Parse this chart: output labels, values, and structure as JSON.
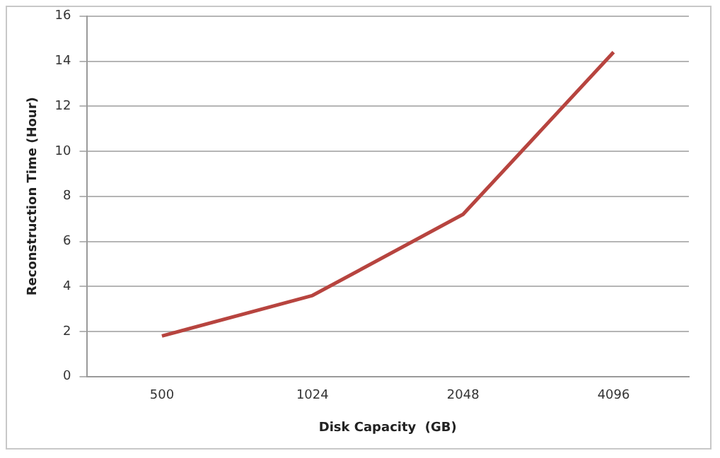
{
  "chart_data": {
    "type": "line",
    "xlabel": "Disk Capacity  (GB)",
    "ylabel": "Reconstruction Time (Hour)",
    "categories": [
      "500",
      "1024",
      "2048",
      "4096"
    ],
    "series": [
      {
        "color": "#b7443f",
        "values": [
          1.8,
          3.6,
          7.2,
          14.4
        ]
      }
    ],
    "ylim": [
      0,
      16
    ],
    "yticks": [
      0,
      2,
      4,
      6,
      8,
      10,
      12,
      14,
      16
    ],
    "grid": "y",
    "legend": false,
    "marker": "none",
    "line_style": "solid"
  }
}
